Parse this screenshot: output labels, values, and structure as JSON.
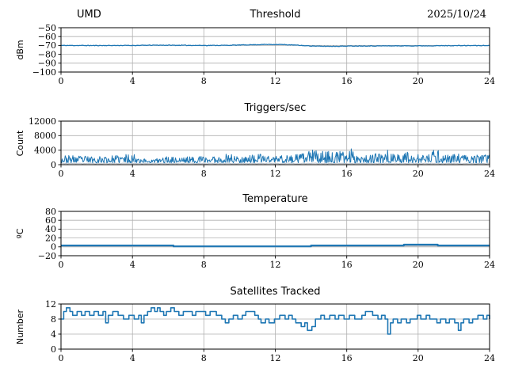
{
  "figure": {
    "background": "#ffffff",
    "grid_color": "#b0b0b0",
    "spine_color": "#000000",
    "primary_line_color": "#1f77b4",
    "secondary_line_color": "#b7bec6"
  },
  "chart_data": [
    {
      "type": "line",
      "title": "Threshold",
      "title_left": "UMD",
      "title_right": "2025/10/24",
      "ylabel": "dBm",
      "xlim": [
        0,
        24
      ],
      "ylim": [
        -100,
        -50
      ],
      "xticks": [
        0,
        4,
        8,
        12,
        16,
        20,
        24
      ],
      "yticks": [
        -100,
        -90,
        -80,
        -70,
        -60,
        -50
      ],
      "grid": true,
      "legend": "none",
      "series": [
        {
          "name": "threshold-dbm-line",
          "color": "#1f77b4",
          "render": "noisy",
          "width": 1.3,
          "samples": 520,
          "noise": 0.35,
          "seed": 11,
          "control": [
            [
              0,
              -70
            ],
            [
              2,
              -70.1
            ],
            [
              4,
              -70
            ],
            [
              5.5,
              -69.7
            ],
            [
              6.5,
              -69.8
            ],
            [
              8,
              -70
            ],
            [
              9.5,
              -69.8
            ],
            [
              10.5,
              -69.3
            ],
            [
              11.5,
              -68.9
            ],
            [
              12.2,
              -68.9
            ],
            [
              13,
              -69.5
            ],
            [
              13.8,
              -70.4
            ],
            [
              14.5,
              -70.9
            ],
            [
              15.5,
              -70.9
            ],
            [
              16.5,
              -70.6
            ],
            [
              18,
              -70.5
            ],
            [
              20,
              -70.4
            ],
            [
              22,
              -70.2
            ],
            [
              24,
              -70.1
            ]
          ]
        }
      ]
    },
    {
      "type": "line",
      "title": "Triggers/sec",
      "ylabel": "Count",
      "xlim": [
        0,
        24
      ],
      "ylim": [
        0,
        12000
      ],
      "xticks": [
        0,
        4,
        8,
        12,
        16,
        20,
        24
      ],
      "yticks": [
        0,
        4000,
        8000,
        12000
      ],
      "grid": true,
      "legend": "none",
      "series": [
        {
          "name": "triggers-baseline-line",
          "color": "#b7bec6",
          "render": "noisy",
          "width": 1.0,
          "samples": 260,
          "noise": 110,
          "seed": 5,
          "control": [
            [
              0,
              330
            ],
            [
              24,
              330
            ]
          ]
        },
        {
          "name": "triggers-count-band",
          "color": "#1f77b4",
          "render": "band",
          "width": 1.0,
          "samples": 720,
          "lo": 500,
          "exp": 1.4,
          "seed": 23,
          "control": [
            [
              0,
              2600
            ],
            [
              1,
              2500
            ],
            [
              2,
              2400
            ],
            [
              3,
              2500
            ],
            [
              3.8,
              3000
            ],
            [
              4.2,
              3100
            ],
            [
              4.6,
              1800
            ],
            [
              5,
              1500
            ],
            [
              5.5,
              1800
            ],
            [
              6,
              2400
            ],
            [
              6.5,
              2100
            ],
            [
              7,
              2300
            ],
            [
              7.5,
              2200
            ],
            [
              8,
              2500
            ],
            [
              8.5,
              2400
            ],
            [
              9,
              2600
            ],
            [
              9.5,
              3400
            ],
            [
              9.8,
              2400
            ],
            [
              10.3,
              3000
            ],
            [
              10.8,
              2600
            ],
            [
              11.3,
              3100
            ],
            [
              11.8,
              2600
            ],
            [
              12.3,
              2800
            ],
            [
              12.8,
              2700
            ],
            [
              13.3,
              2900
            ],
            [
              13.8,
              3500
            ],
            [
              14.1,
              4600
            ],
            [
              14.4,
              3600
            ],
            [
              14.8,
              3900
            ],
            [
              15.2,
              3400
            ],
            [
              15.6,
              3700
            ],
            [
              16.0,
              3800
            ],
            [
              16.3,
              4700
            ],
            [
              16.6,
              3400
            ],
            [
              17,
              2900
            ],
            [
              17.5,
              3000
            ],
            [
              18,
              3200
            ],
            [
              18.3,
              4400
            ],
            [
              18.6,
              3000
            ],
            [
              19,
              3100
            ],
            [
              19.5,
              3900
            ],
            [
              20,
              2800
            ],
            [
              20.5,
              2700
            ],
            [
              21,
              4500
            ],
            [
              21.3,
              3300
            ],
            [
              21.8,
              2800
            ],
            [
              22.3,
              3000
            ],
            [
              22.8,
              2600
            ],
            [
              23.3,
              2700
            ],
            [
              24,
              2800
            ]
          ]
        }
      ]
    },
    {
      "type": "line",
      "title": "Temperature",
      "ylabel": "ºC",
      "xlim": [
        0,
        24
      ],
      "ylim": [
        -20,
        80
      ],
      "xticks": [
        0,
        4,
        8,
        12,
        16,
        20,
        24
      ],
      "yticks": [
        -20,
        0,
        20,
        40,
        60,
        80
      ],
      "grid": true,
      "legend": "none",
      "series": [
        {
          "name": "temperature-secondary-line",
          "color": "#b7bec6",
          "render": "step",
          "width": 2.2,
          "control": [
            [
              0,
              3
            ],
            [
              6.3,
              1
            ],
            [
              14,
              3
            ]
          ]
        },
        {
          "name": "temperature-celsius-line",
          "color": "#1f77b4",
          "render": "step",
          "width": 2.2,
          "control": [
            [
              0,
              3
            ],
            [
              6.3,
              1
            ],
            [
              14,
              3
            ],
            [
              19.2,
              5
            ],
            [
              21.1,
              3
            ]
          ]
        }
      ]
    },
    {
      "type": "line",
      "title": "Satellites Tracked",
      "ylabel": "Number",
      "xlim": [
        0,
        24
      ],
      "ylim": [
        0,
        12
      ],
      "xticks": [
        0,
        4,
        8,
        12,
        16,
        20,
        24
      ],
      "yticks": [
        0,
        4,
        8,
        12
      ],
      "grid": true,
      "legend": "none",
      "series": [
        {
          "name": "satellites-tracked-line",
          "color": "#1f77b4",
          "render": "step",
          "width": 1.6,
          "control": [
            [
              0,
              8
            ],
            [
              0.15,
              10
            ],
            [
              0.3,
              11
            ],
            [
              0.5,
              10
            ],
            [
              0.65,
              9
            ],
            [
              0.9,
              10
            ],
            [
              1.15,
              9
            ],
            [
              1.35,
              10
            ],
            [
              1.6,
              9
            ],
            [
              1.85,
              10
            ],
            [
              2.1,
              9
            ],
            [
              2.35,
              10
            ],
            [
              2.5,
              7
            ],
            [
              2.65,
              9
            ],
            [
              2.9,
              10
            ],
            [
              3.2,
              9
            ],
            [
              3.5,
              8
            ],
            [
              3.8,
              9
            ],
            [
              4.1,
              8
            ],
            [
              4.35,
              9
            ],
            [
              4.5,
              7
            ],
            [
              4.65,
              9
            ],
            [
              4.85,
              10
            ],
            [
              5.05,
              11
            ],
            [
              5.25,
              10
            ],
            [
              5.4,
              11
            ],
            [
              5.55,
              10
            ],
            [
              5.75,
              9
            ],
            [
              5.9,
              10
            ],
            [
              6.15,
              11
            ],
            [
              6.35,
              10
            ],
            [
              6.6,
              9
            ],
            [
              6.85,
              10
            ],
            [
              7.35,
              9
            ],
            [
              7.55,
              10
            ],
            [
              8.1,
              9
            ],
            [
              8.35,
              10
            ],
            [
              8.7,
              9
            ],
            [
              9.0,
              8
            ],
            [
              9.2,
              7
            ],
            [
              9.4,
              8
            ],
            [
              9.65,
              9
            ],
            [
              9.9,
              8
            ],
            [
              10.15,
              9
            ],
            [
              10.35,
              10
            ],
            [
              10.85,
              9
            ],
            [
              11.05,
              8
            ],
            [
              11.2,
              7
            ],
            [
              11.45,
              8
            ],
            [
              11.65,
              7
            ],
            [
              11.95,
              8
            ],
            [
              12.25,
              9
            ],
            [
              12.55,
              8
            ],
            [
              12.75,
              9
            ],
            [
              12.95,
              8
            ],
            [
              13.15,
              7
            ],
            [
              13.45,
              6
            ],
            [
              13.65,
              7
            ],
            [
              13.8,
              5
            ],
            [
              14.05,
              6
            ],
            [
              14.25,
              8
            ],
            [
              14.55,
              9
            ],
            [
              14.75,
              8
            ],
            [
              15.05,
              9
            ],
            [
              15.35,
              8
            ],
            [
              15.55,
              9
            ],
            [
              15.85,
              8
            ],
            [
              16.15,
              9
            ],
            [
              16.45,
              8
            ],
            [
              16.85,
              9
            ],
            [
              17.05,
              10
            ],
            [
              17.45,
              9
            ],
            [
              17.75,
              8
            ],
            [
              17.95,
              9
            ],
            [
              18.15,
              8
            ],
            [
              18.3,
              4
            ],
            [
              18.45,
              7
            ],
            [
              18.6,
              8
            ],
            [
              18.85,
              7
            ],
            [
              19.05,
              8
            ],
            [
              19.35,
              7
            ],
            [
              19.55,
              8
            ],
            [
              19.95,
              9
            ],
            [
              20.15,
              8
            ],
            [
              20.45,
              9
            ],
            [
              20.65,
              8
            ],
            [
              21.05,
              7
            ],
            [
              21.25,
              8
            ],
            [
              21.55,
              7
            ],
            [
              21.75,
              8
            ],
            [
              22.05,
              7
            ],
            [
              22.25,
              5
            ],
            [
              22.4,
              7
            ],
            [
              22.55,
              8
            ],
            [
              22.85,
              7
            ],
            [
              23.05,
              8
            ],
            [
              23.35,
              9
            ],
            [
              23.65,
              8
            ],
            [
              23.85,
              9
            ],
            [
              24,
              8
            ]
          ]
        }
      ]
    }
  ]
}
